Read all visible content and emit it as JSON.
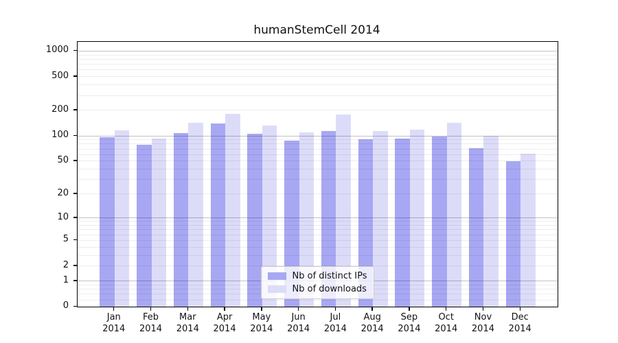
{
  "title": "humanStemCell 2014",
  "legend": {
    "items": [
      {
        "label": "Nb of distinct IPs",
        "color": "#a7a7f3"
      },
      {
        "label": "Nb of downloads",
        "color": "#dcdcf9"
      }
    ]
  },
  "axes": {
    "y_ticks": [
      {
        "value": 1000,
        "label": "1000"
      },
      {
        "value": 500,
        "label": "500"
      },
      {
        "value": 200,
        "label": "200"
      },
      {
        "value": 100,
        "label": "100"
      },
      {
        "value": 50,
        "label": "50"
      },
      {
        "value": 20,
        "label": "20"
      },
      {
        "value": 10,
        "label": "10"
      },
      {
        "value": 5,
        "label": "5"
      },
      {
        "value": 2,
        "label": "2"
      },
      {
        "value": 1,
        "label": "1"
      },
      {
        "value": 0,
        "label": "0"
      }
    ],
    "major_gridline_values": [
      1,
      10,
      100,
      1000
    ],
    "minor_gridline_values": [
      0.2,
      0.4,
      0.6,
      0.8,
      2,
      3,
      4,
      5,
      6,
      7,
      8,
      9,
      20,
      30,
      40,
      50,
      60,
      70,
      80,
      90,
      200,
      300,
      400,
      500,
      600,
      700,
      800,
      900
    ]
  },
  "chart_data": {
    "type": "bar",
    "title": "humanStemCell 2014",
    "categories": [
      "Jan 2014",
      "Feb 2014",
      "Mar 2014",
      "Apr 2014",
      "May 2014",
      "Jun 2014",
      "Jul 2014",
      "Aug 2014",
      "Sep 2014",
      "Oct 2014",
      "Nov 2014",
      "Dec 2014"
    ],
    "series": [
      {
        "name": "Nb of distinct IPs",
        "color": "#a7a7f3",
        "values": [
          97,
          78,
          107,
          140,
          106,
          87,
          114,
          92,
          93,
          99,
          71,
          50
        ]
      },
      {
        "name": "Nb of downloads",
        "color": "#dcdcf9",
        "values": [
          117,
          93,
          143,
          182,
          132,
          110,
          178,
          115,
          119,
          142,
          100,
          61
        ]
      }
    ],
    "xlabel": "",
    "ylabel": "",
    "yscale": "log10(1+y)",
    "ylim": [
      0,
      1280
    ],
    "yticks": [
      0,
      1,
      2,
      5,
      10,
      20,
      50,
      100,
      200,
      500,
      1000
    ],
    "grid": "major and minor horizontal gridlines drawn over bars",
    "legend_position": "lower center"
  }
}
